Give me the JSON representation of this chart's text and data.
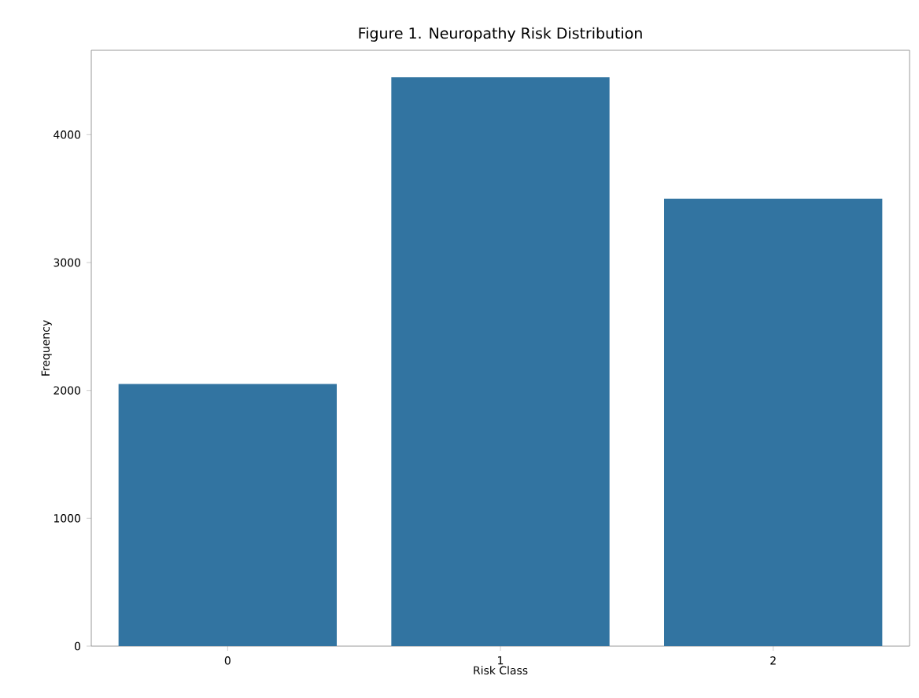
{
  "chart_data": {
    "type": "bar",
    "title": "Figure 1. Neuropathy Risk Distribution",
    "xlabel": "Risk Class",
    "ylabel": "Frequency",
    "categories": [
      "0",
      "1",
      "2"
    ],
    "values": [
      2050,
      4450,
      3500
    ],
    "color": "#3274a1",
    "ylim": [
      0,
      4660
    ],
    "yticks": [
      0,
      1000,
      2000,
      3000,
      4000
    ],
    "grid": false
  }
}
